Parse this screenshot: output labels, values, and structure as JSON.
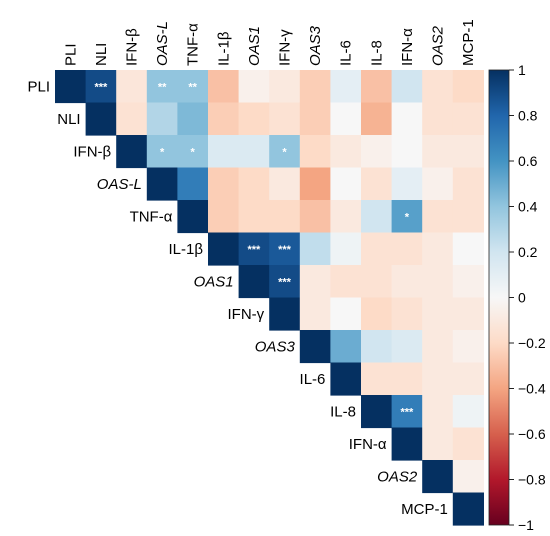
{
  "chart_data": {
    "type": "heatmap",
    "variables": [
      "PLI",
      "NLI",
      "IFN-β",
      "OAS-L",
      "TNF-α",
      "IL-1β",
      "OAS1",
      "IFN-γ",
      "OAS3",
      "IL-6",
      "IL-8",
      "IFN-α",
      "OAS2",
      "MCP-1"
    ],
    "italic_variables": [
      "OAS-L",
      "OAS1",
      "OAS3",
      "OAS2"
    ],
    "layout": "upper-triangle, row labels on diagonal, column labels on top",
    "colorbar": {
      "range": [
        -1,
        1
      ],
      "ticks": [
        "1",
        "0.8",
        "0.6",
        "0.4",
        "0.2",
        "0",
        "−0.2",
        "−0.4",
        "−0.6",
        "−0.8",
        "−1"
      ],
      "colors": {
        "negative": "#67001f",
        "neutral": "#ffffff",
        "positive": "#053061"
      }
    },
    "values": [
      [
        1,
        0.9,
        -0.12,
        0.4,
        0.4,
        -0.3,
        -0.05,
        -0.1,
        -0.25,
        0.1,
        -0.3,
        0.2,
        -0.15,
        -0.2
      ],
      [
        null,
        1,
        -0.15,
        0.3,
        0.45,
        -0.25,
        -0.2,
        -0.15,
        -0.25,
        0.0,
        -0.35,
        0.0,
        -0.15,
        -0.15
      ],
      [
        null,
        null,
        1,
        0.4,
        0.4,
        0.15,
        0.15,
        0.4,
        -0.2,
        -0.1,
        -0.05,
        0.0,
        -0.1,
        -0.1
      ],
      [
        null,
        null,
        null,
        1,
        0.7,
        -0.25,
        -0.2,
        -0.1,
        -0.4,
        0.0,
        -0.15,
        0.1,
        -0.05,
        -0.15
      ],
      [
        null,
        null,
        null,
        null,
        1,
        -0.25,
        -0.2,
        -0.2,
        -0.3,
        -0.1,
        0.2,
        0.55,
        -0.15,
        -0.15
      ],
      [
        null,
        null,
        null,
        null,
        null,
        1,
        0.9,
        0.85,
        0.25,
        0.05,
        -0.15,
        -0.15,
        -0.1,
        0.0
      ],
      [
        null,
        null,
        null,
        null,
        null,
        null,
        1,
        0.9,
        -0.1,
        -0.15,
        -0.15,
        -0.1,
        -0.1,
        -0.05
      ],
      [
        null,
        null,
        null,
        null,
        null,
        null,
        null,
        1,
        -0.1,
        0.0,
        -0.2,
        -0.15,
        -0.1,
        -0.1
      ],
      [
        null,
        null,
        null,
        null,
        null,
        null,
        null,
        null,
        1,
        0.5,
        0.2,
        0.15,
        -0.1,
        -0.05
      ],
      [
        null,
        null,
        null,
        null,
        null,
        null,
        null,
        null,
        null,
        1,
        -0.15,
        -0.15,
        -0.1,
        -0.1
      ],
      [
        null,
        null,
        null,
        null,
        null,
        null,
        null,
        null,
        null,
        null,
        1,
        0.7,
        -0.1,
        0.05
      ],
      [
        null,
        null,
        null,
        null,
        null,
        null,
        null,
        null,
        null,
        null,
        null,
        1,
        -0.1,
        -0.15
      ],
      [
        null,
        null,
        null,
        null,
        null,
        null,
        null,
        null,
        null,
        null,
        null,
        null,
        1,
        -0.05
      ],
      [
        null,
        null,
        null,
        null,
        null,
        null,
        null,
        null,
        null,
        null,
        null,
        null,
        null,
        1
      ]
    ],
    "significance": [
      {
        "row": "PLI",
        "col": "NLI",
        "label": "***"
      },
      {
        "row": "PLI",
        "col": "OAS-L",
        "label": "**"
      },
      {
        "row": "PLI",
        "col": "TNF-α",
        "label": "**"
      },
      {
        "row": "IFN-β",
        "col": "OAS-L",
        "label": "*"
      },
      {
        "row": "IFN-β",
        "col": "TNF-α",
        "label": "*"
      },
      {
        "row": "IFN-β",
        "col": "IFN-γ",
        "label": "*"
      },
      {
        "row": "TNF-α",
        "col": "IFN-α",
        "label": "*"
      },
      {
        "row": "IL-1β",
        "col": "OAS1",
        "label": "***"
      },
      {
        "row": "IL-1β",
        "col": "IFN-γ",
        "label": "***"
      },
      {
        "row": "OAS1",
        "col": "IFN-γ",
        "label": "***"
      },
      {
        "row": "IL-8",
        "col": "IFN-α",
        "label": "***"
      }
    ]
  }
}
